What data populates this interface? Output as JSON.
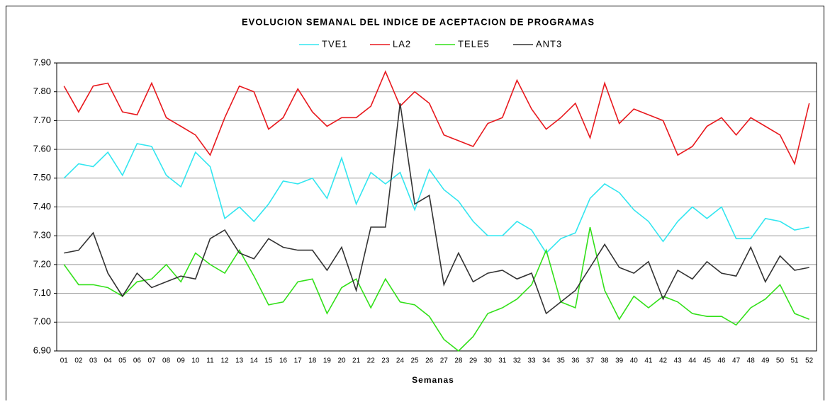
{
  "chart_data": {
    "type": "line",
    "title": "EVOLUCION SEMANAL DEL INDICE DE ACEPTACION DE PROGRAMAS",
    "x_label": "Semanas",
    "legend": "top",
    "grid": true,
    "categories": [
      "01",
      "02",
      "03",
      "04",
      "05",
      "06",
      "07",
      "08",
      "09",
      "10",
      "11",
      "12",
      "13",
      "14",
      "15",
      "16",
      "17",
      "18",
      "19",
      "20",
      "21",
      "22",
      "23",
      "24",
      "25",
      "26",
      "27",
      "28",
      "29",
      "30",
      "31",
      "32",
      "33",
      "34",
      "35",
      "36",
      "37",
      "38",
      "39",
      "40",
      "41",
      "42",
      "43",
      "44",
      "45",
      "46",
      "47",
      "48",
      "49",
      "50",
      "51",
      "52"
    ],
    "ylim": [
      6.9,
      7.9
    ],
    "yticks": [
      {
        "value": 6.9,
        "label": "6.90"
      },
      {
        "value": 7.0,
        "label": "7.00"
      },
      {
        "value": 7.1,
        "label": "7.10"
      },
      {
        "value": 7.2,
        "label": "7.20"
      },
      {
        "value": 7.3,
        "label": "7.30"
      },
      {
        "value": 7.4,
        "label": "7.40"
      },
      {
        "value": 7.5,
        "label": "7.50"
      },
      {
        "value": 7.6,
        "label": "7.60"
      },
      {
        "value": 7.7,
        "label": "7.70"
      },
      {
        "value": 7.8,
        "label": "7.80"
      },
      {
        "value": 7.9,
        "label": "7.90"
      }
    ],
    "series": [
      {
        "name": "TVE1",
        "color": "#33e6f0",
        "values": [
          7.5,
          7.55,
          7.54,
          7.59,
          7.51,
          7.62,
          7.61,
          7.51,
          7.47,
          7.59,
          7.54,
          7.36,
          7.4,
          7.35,
          7.41,
          7.49,
          7.48,
          7.5,
          7.43,
          7.57,
          7.41,
          7.52,
          7.48,
          7.52,
          7.39,
          7.53,
          7.46,
          7.42,
          7.35,
          7.3,
          7.3,
          7.35,
          7.32,
          7.24,
          7.29,
          7.31,
          7.43,
          7.48,
          7.45,
          7.39,
          7.35,
          7.28,
          7.35,
          7.4,
          7.36,
          7.4,
          7.29,
          7.29,
          7.36,
          7.35,
          7.32,
          7.33
        ]
      },
      {
        "name": "LA2",
        "color": "#e8191e",
        "values": [
          7.82,
          7.73,
          7.82,
          7.83,
          7.73,
          7.72,
          7.83,
          7.71,
          7.68,
          7.65,
          7.58,
          7.71,
          7.82,
          7.8,
          7.67,
          7.71,
          7.81,
          7.73,
          7.68,
          7.71,
          7.71,
          7.75,
          7.87,
          7.75,
          7.8,
          7.76,
          7.65,
          7.63,
          7.61,
          7.69,
          7.71,
          7.84,
          7.74,
          7.67,
          7.71,
          7.76,
          7.64,
          7.83,
          7.69,
          7.74,
          7.72,
          7.7,
          7.58,
          7.61,
          7.68,
          7.71,
          7.65,
          7.71,
          7.68,
          7.65,
          7.55,
          7.76
        ]
      },
      {
        "name": "TELE5",
        "color": "#33e01a",
        "values": [
          7.2,
          7.13,
          7.13,
          7.12,
          7.09,
          7.14,
          7.15,
          7.2,
          7.14,
          7.24,
          7.2,
          7.17,
          7.25,
          7.16,
          7.06,
          7.07,
          7.14,
          7.15,
          7.03,
          7.12,
          7.15,
          7.05,
          7.15,
          7.07,
          7.06,
          7.02,
          6.94,
          6.9,
          6.95,
          7.03,
          7.05,
          7.08,
          7.13,
          7.25,
          7.07,
          7.05,
          7.33,
          7.11,
          7.01,
          7.09,
          7.05,
          7.09,
          7.07,
          7.03,
          7.02,
          7.02,
          6.99,
          7.05,
          7.08,
          7.13,
          7.03,
          7.01
        ]
      },
      {
        "name": "ANT3",
        "color": "#333333",
        "values": [
          7.24,
          7.25,
          7.31,
          7.17,
          7.09,
          7.17,
          7.12,
          7.14,
          7.16,
          7.15,
          7.29,
          7.32,
          7.24,
          7.22,
          7.29,
          7.26,
          7.25,
          7.25,
          7.18,
          7.26,
          7.11,
          7.33,
          7.33,
          7.76,
          7.41,
          7.44,
          7.13,
          7.24,
          7.14,
          7.17,
          7.18,
          7.15,
          7.17,
          7.03,
          7.07,
          7.11,
          7.19,
          7.27,
          7.19,
          7.17,
          7.21,
          7.08,
          7.18,
          7.15,
          7.21,
          7.17,
          7.16,
          7.26,
          7.14,
          7.23,
          7.18,
          7.19
        ]
      }
    ]
  }
}
